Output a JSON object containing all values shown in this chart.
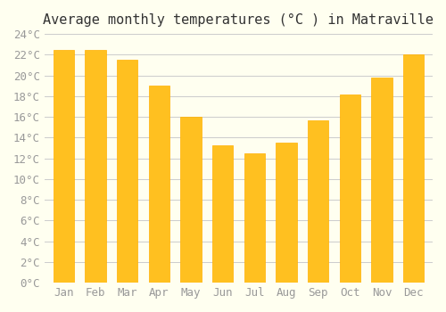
{
  "title": "Average monthly temperatures (°C ) in Matraville",
  "months": [
    "Jan",
    "Feb",
    "Mar",
    "Apr",
    "May",
    "Jun",
    "Jul",
    "Aug",
    "Sep",
    "Oct",
    "Nov",
    "Dec"
  ],
  "values": [
    22.5,
    22.5,
    21.5,
    19.0,
    16.0,
    13.3,
    12.5,
    13.5,
    15.7,
    18.2,
    19.8,
    22.0
  ],
  "bar_color_top": "#FFC020",
  "bar_color_bottom": "#FFB000",
  "background_color": "#FFFFF0",
  "grid_color": "#CCCCCC",
  "ylim": [
    0,
    24
  ],
  "ytick_step": 2,
  "title_fontsize": 11,
  "tick_fontsize": 9,
  "tick_font": "monospace"
}
